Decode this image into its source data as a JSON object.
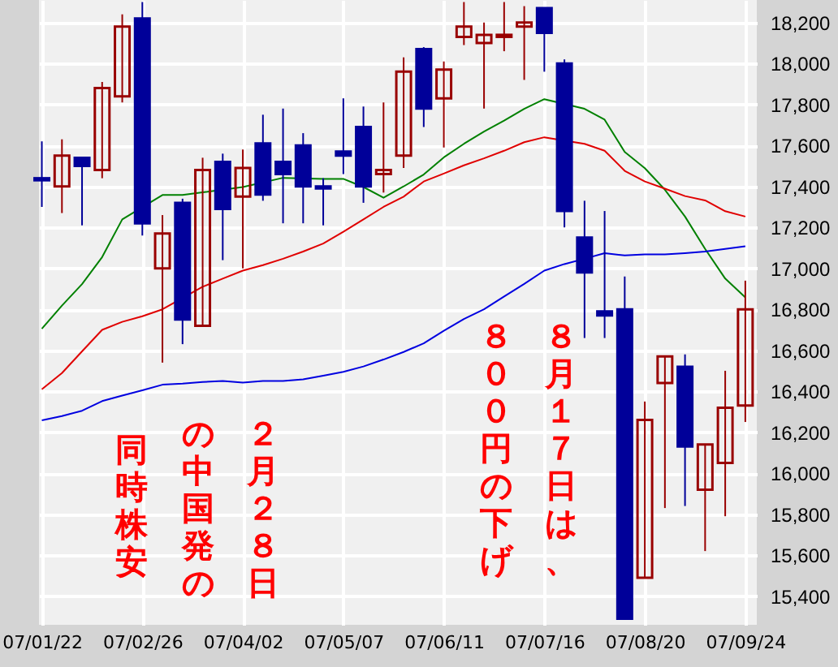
{
  "chart_data": {
    "type": "candlestick",
    "x": [
      "2007-01-22",
      "2007-01-29",
      "2007-02-05",
      "2007-02-12",
      "2007-02-19",
      "2007-02-26",
      "2007-03-05",
      "2007-03-12",
      "2007-03-19",
      "2007-03-26",
      "2007-04-02",
      "2007-04-09",
      "2007-04-16",
      "2007-04-23",
      "2007-04-30",
      "2007-05-07",
      "2007-05-14",
      "2007-05-21",
      "2007-05-28",
      "2007-06-04",
      "2007-06-11",
      "2007-06-18",
      "2007-06-25",
      "2007-07-02",
      "2007-07-09",
      "2007-07-16",
      "2007-07-23",
      "2007-07-30",
      "2007-08-06",
      "2007-08-13",
      "2007-08-20",
      "2007-08-27",
      "2007-09-03",
      "2007-09-10",
      "2007-09-17",
      "2007-09-24"
    ],
    "ohlc": [
      [
        17440,
        17620,
        17300,
        17430
      ],
      [
        17400,
        17630,
        17270,
        17550
      ],
      [
        17540,
        17540,
        17210,
        17500
      ],
      [
        17480,
        17910,
        17440,
        17880
      ],
      [
        17840,
        18240,
        17810,
        18180
      ],
      [
        18220,
        18300,
        17160,
        17220
      ],
      [
        17000,
        17260,
        16540,
        17170
      ],
      [
        17320,
        17340,
        16630,
        16750
      ],
      [
        16720,
        17540,
        16720,
        17480
      ],
      [
        17520,
        17560,
        17040,
        17290
      ],
      [
        17350,
        17580,
        17000,
        17490
      ],
      [
        17610,
        17750,
        17330,
        17360
      ],
      [
        17520,
        17780,
        17220,
        17460
      ],
      [
        17600,
        17660,
        17220,
        17400
      ],
      [
        17400,
        17440,
        17210,
        17390
      ],
      [
        17570,
        17830,
        17460,
        17550
      ],
      [
        17690,
        17790,
        17320,
        17400
      ],
      [
        17460,
        17810,
        17370,
        17480
      ],
      [
        17550,
        18030,
        17490,
        17960
      ],
      [
        18070,
        18080,
        17690,
        17780
      ],
      [
        17830,
        18010,
        17590,
        17970
      ],
      [
        18130,
        18300,
        18090,
        18180
      ],
      [
        18100,
        18200,
        17780,
        18140
      ],
      [
        18130,
        18300,
        18060,
        18140
      ],
      [
        18180,
        18280,
        17920,
        18200
      ],
      [
        18270,
        18270,
        17960,
        18150
      ],
      [
        18000,
        18020,
        17200,
        17280
      ],
      [
        17150,
        17330,
        16660,
        16980
      ],
      [
        16790,
        17280,
        16660,
        16770
      ],
      [
        16800,
        16960,
        15290,
        15290
      ],
      [
        15490,
        16350,
        15490,
        16260
      ],
      [
        16440,
        16570,
        15830,
        16570
      ],
      [
        16520,
        16580,
        15840,
        16130
      ],
      [
        15920,
        16140,
        15620,
        16140
      ],
      [
        16050,
        16500,
        15790,
        16320
      ],
      [
        16330,
        16940,
        16250,
        16800
      ]
    ],
    "colors": [
      "#000099",
      "#990000",
      "#000099",
      "#990000",
      "#990000",
      "#000099",
      "#990000",
      "#000099",
      "#990000",
      "#000099",
      "#990000",
      "#000099",
      "#000099",
      "#000099",
      "#000099",
      "#000099",
      "#000099",
      "#990000",
      "#990000",
      "#000099",
      "#990000",
      "#990000",
      "#990000",
      "#990000",
      "#990000",
      "#000099",
      "#000099",
      "#000099",
      "#000099",
      "#000099",
      "#990000",
      "#990000",
      "#000099",
      "#990000",
      "#990000",
      "#990000"
    ],
    "series": [
      {
        "type": "line",
        "color": "#008000",
        "values": [
          16705,
          16818,
          16923,
          17055,
          17239,
          null,
          17358,
          17358,
          17371,
          null,
          17397,
          null,
          17442,
          null,
          17437,
          17437,
          17397,
          17345,
          17400,
          17458,
          17542,
          17608,
          17668,
          17721,
          17779,
          17826,
          null,
          17779,
          17726,
          17568,
          17489,
          17384,
          17253,
          17095,
          16950,
          16858
        ]
      },
      {
        "type": "line",
        "color": "#e00000",
        "values": [
          16410,
          16489,
          16595,
          16700,
          16739,
          16766,
          16800,
          null,
          16910,
          16950,
          16989,
          17016,
          17047,
          17082,
          17121,
          17179,
          17239,
          17300,
          17350,
          17424,
          17463,
          17503,
          17537,
          17574,
          17616,
          17640,
          null,
          17608,
          17574,
          17476,
          17424,
          17389,
          17353,
          17332,
          17279,
          17253
        ]
      },
      {
        "type": "line",
        "color": "#0000e0",
        "values": [
          16258,
          16279,
          16305,
          16352,
          16379,
          16405,
          16432,
          16437,
          16445,
          16450,
          16442,
          16450,
          16450,
          16458,
          16476,
          16495,
          16521,
          16555,
          16592,
          16634,
          16695,
          16753,
          16800,
          16863,
          16924,
          16989,
          17021,
          17047,
          17074,
          17063,
          17068,
          17068,
          17074,
          17082,
          17095,
          17108
        ]
      }
    ],
    "xlim": [
      "2007-01-21",
      "2007-09-28"
    ],
    "xticks": [
      {
        "value": "2007-01-22",
        "label": "07/01/22"
      },
      {
        "value": "2007-02-26",
        "label": "07/02/26"
      },
      {
        "value": "2007-04-02",
        "label": "07/04/02"
      },
      {
        "value": "2007-05-07",
        "label": "07/05/07"
      },
      {
        "value": "2007-06-11",
        "label": "07/06/11"
      },
      {
        "value": "2007-07-16",
        "label": "07/07/16"
      },
      {
        "value": "2007-08-20",
        "label": "07/08/20"
      },
      {
        "value": "2007-09-24",
        "label": "07/09/24"
      }
    ],
    "ylim": [
      15260,
      18310
    ],
    "yticks": [
      {
        "value": 15400,
        "label": "15,400"
      },
      {
        "value": 15600,
        "label": "15,600"
      },
      {
        "value": 15800,
        "label": "15,800"
      },
      {
        "value": 16000,
        "label": "16,000"
      },
      {
        "value": 16200,
        "label": "16,200"
      },
      {
        "value": 16400,
        "label": "16,400"
      },
      {
        "value": 16600,
        "label": "16,600"
      },
      {
        "value": 16800,
        "label": "16,800"
      },
      {
        "value": 17000,
        "label": "17,000"
      },
      {
        "value": 17200,
        "label": "17,200"
      },
      {
        "value": 17400,
        "label": "17,400"
      },
      {
        "value": 17600,
        "label": "17,600"
      },
      {
        "value": 17800,
        "label": "17,800"
      },
      {
        "value": 18000,
        "label": "18,000"
      },
      {
        "value": 18200,
        "label": "18,200"
      }
    ],
    "grid": true,
    "annotations": [
      "２月２８日",
      "の中国発の",
      "同時株安",
      "８月１７日は、",
      "８００円の下げ"
    ]
  }
}
